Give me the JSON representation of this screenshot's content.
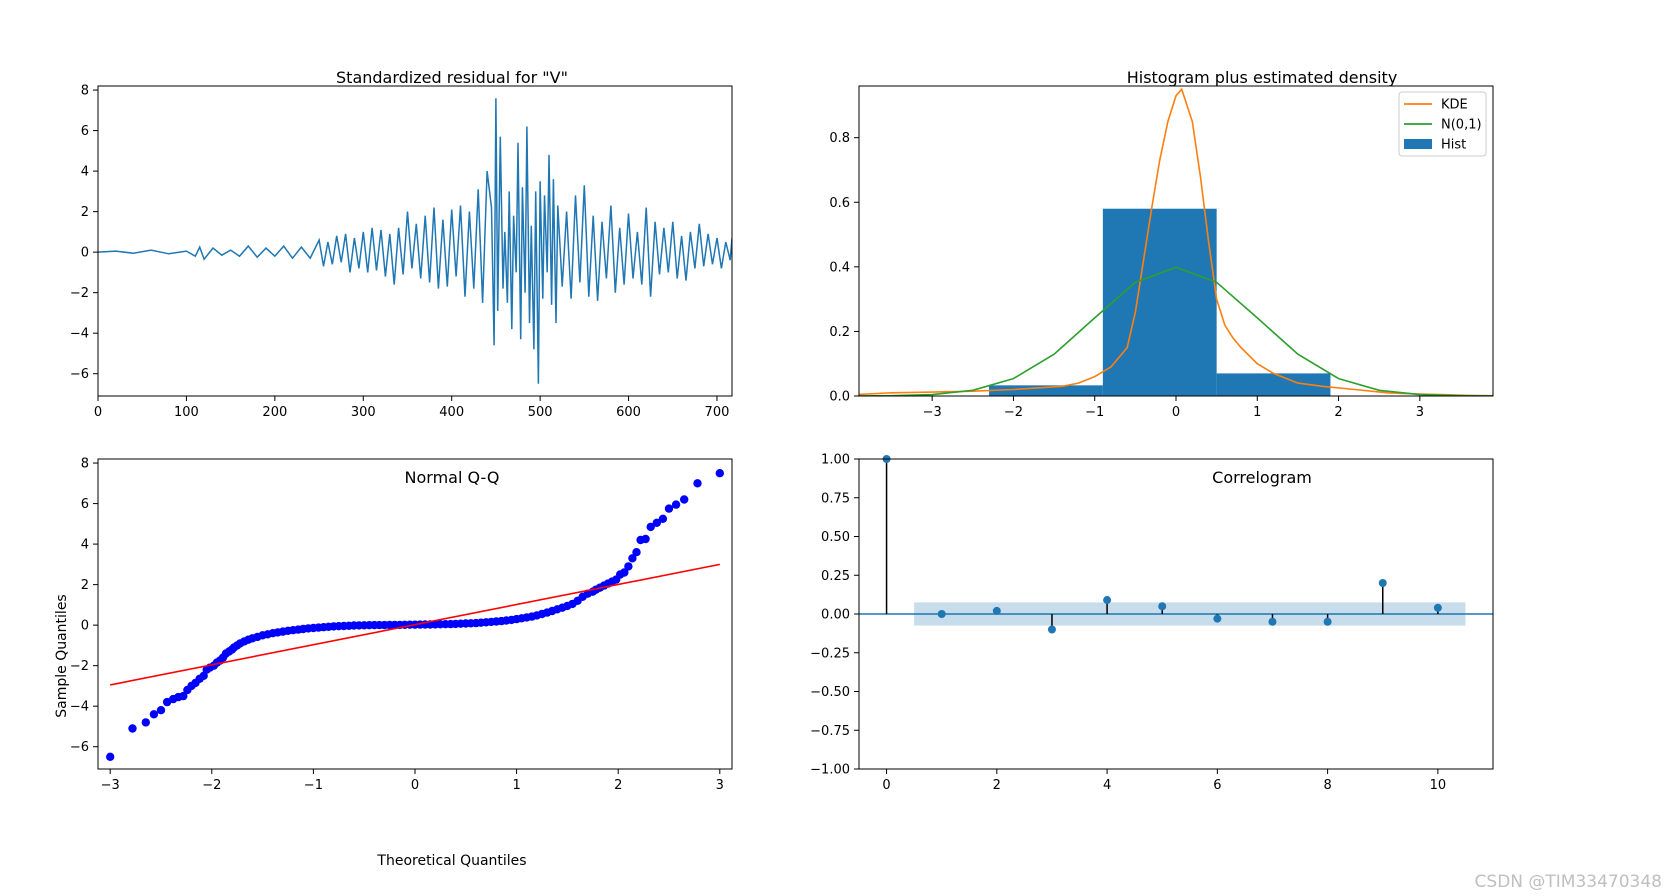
{
  "watermark": "CSDN @TIM33470348",
  "chart_data": [
    {
      "type": "line",
      "title": "Standardized residual for \"V\"",
      "xlabel": "",
      "ylabel": "",
      "xlim": [
        0,
        717
      ],
      "ylim": [
        -7.1,
        8.2
      ],
      "xticks": [
        0,
        100,
        200,
        300,
        400,
        500,
        600,
        700
      ],
      "yticks": [
        -6,
        -4,
        -2,
        0,
        2,
        4,
        6,
        8
      ],
      "color": "#1f77b4",
      "series": [
        {
          "x": [
            0,
            20,
            40,
            60,
            80,
            100,
            110,
            115,
            120,
            130,
            140,
            150,
            160,
            170,
            180,
            190,
            200,
            210,
            220,
            230,
            240,
            250,
            255,
            260,
            265,
            270,
            275,
            280,
            285,
            290,
            295,
            300,
            305,
            310,
            315,
            320,
            325,
            330,
            335,
            340,
            345,
            350,
            355,
            360,
            365,
            370,
            375,
            380,
            385,
            390,
            395,
            400,
            405,
            410,
            415,
            420,
            425,
            430,
            435,
            440,
            445,
            448,
            450,
            452,
            455,
            458,
            460,
            463,
            465,
            468,
            470,
            473,
            475,
            478,
            480,
            483,
            485,
            488,
            490,
            493,
            495,
            498,
            500,
            503,
            505,
            508,
            510,
            513,
            515,
            518,
            520,
            525,
            530,
            535,
            540,
            545,
            550,
            555,
            560,
            565,
            570,
            575,
            580,
            585,
            590,
            595,
            600,
            605,
            610,
            615,
            620,
            625,
            630,
            635,
            640,
            645,
            650,
            655,
            660,
            665,
            670,
            675,
            680,
            685,
            690,
            695,
            700,
            705,
            710,
            715,
            717
          ],
          "y": [
            0.0,
            0.05,
            -0.05,
            0.1,
            -0.08,
            0.05,
            -0.2,
            0.25,
            -0.35,
            0.2,
            -0.15,
            0.1,
            -0.2,
            0.3,
            -0.25,
            0.2,
            -0.2,
            0.3,
            -0.3,
            0.25,
            -0.3,
            0.6,
            -0.7,
            0.5,
            -0.6,
            0.8,
            -0.5,
            0.9,
            -1.0,
            0.7,
            -0.8,
            1.0,
            -1.0,
            1.2,
            -0.9,
            1.1,
            -1.2,
            0.9,
            -1.6,
            1.2,
            -1.1,
            2.0,
            -0.8,
            1.4,
            -1.3,
            1.8,
            -1.5,
            2.2,
            -1.8,
            1.6,
            -1.7,
            2.1,
            -1.2,
            2.3,
            -2.2,
            2.0,
            -1.8,
            3.1,
            -2.5,
            4.0,
            2.2,
            -4.6,
            7.6,
            -2.9,
            5.7,
            -1.8,
            1.0,
            -2.5,
            3.0,
            -3.8,
            1.8,
            -1.0,
            5.4,
            -4.3,
            3.2,
            -2.0,
            6.2,
            -3.5,
            1.3,
            -4.8,
            3.0,
            -6.5,
            3.5,
            -2.3,
            2.8,
            -1.0,
            4.8,
            -2.6,
            3.6,
            -3.5,
            2.3,
            -1.7,
            2.0,
            -2.3,
            2.8,
            -1.5,
            3.3,
            -2.2,
            1.8,
            -2.4,
            1.5,
            -1.3,
            2.3,
            -2.0,
            1.2,
            -1.6,
            1.9,
            -1.3,
            1.0,
            -1.6,
            2.2,
            -2.2,
            1.5,
            -1.1,
            1.2,
            -1.0,
            1.5,
            -1.3,
            0.8,
            -1.4,
            1.0,
            -0.8,
            1.4,
            -0.7,
            0.9,
            -0.6,
            0.7,
            -0.8,
            0.5,
            -0.4,
            0.7
          ]
        }
      ]
    },
    {
      "type": "histogram",
      "title": "Histogram plus estimated density",
      "xlabel": "",
      "ylabel": "",
      "xlim": [
        -3.9,
        3.9
      ],
      "ylim": [
        0,
        0.96
      ],
      "xticks": [
        -3,
        -2,
        -1,
        0,
        1,
        2,
        3
      ],
      "yticks": [
        0.0,
        0.2,
        0.4,
        0.6,
        0.8
      ],
      "legend": {
        "position": "top-right",
        "entries": [
          "KDE",
          "N(0,1)",
          "Hist"
        ]
      },
      "bins": [
        {
          "x0": -2.3,
          "x1": -0.9,
          "value": 0.033
        },
        {
          "x0": -0.9,
          "x1": 0.5,
          "value": 0.58
        },
        {
          "x0": 0.5,
          "x1": 1.9,
          "value": 0.07
        }
      ],
      "series": [
        {
          "name": "KDE",
          "color": "#ff7f0e",
          "x": [
            -3.9,
            -3.5,
            -3.0,
            -2.5,
            -2.0,
            -1.7,
            -1.4,
            -1.2,
            -1.0,
            -0.8,
            -0.6,
            -0.5,
            -0.4,
            -0.3,
            -0.2,
            -0.1,
            0.0,
            0.07,
            0.2,
            0.3,
            0.4,
            0.5,
            0.6,
            0.7,
            0.8,
            1.0,
            1.2,
            1.5,
            1.8,
            2.2,
            2.6,
            3.0,
            3.3,
            3.6,
            3.9
          ],
          "y": [
            0.005,
            0.01,
            0.012,
            0.015,
            0.02,
            0.025,
            0.03,
            0.04,
            0.06,
            0.09,
            0.15,
            0.26,
            0.42,
            0.58,
            0.73,
            0.85,
            0.93,
            0.95,
            0.85,
            0.68,
            0.48,
            0.3,
            0.22,
            0.18,
            0.15,
            0.1,
            0.07,
            0.04,
            0.03,
            0.02,
            0.01,
            0.006,
            0.004,
            0.002,
            0.001
          ]
        },
        {
          "name": "N(0,1)",
          "color": "#2ca02c",
          "x": [
            -3.9,
            -3.5,
            -3.0,
            -2.5,
            -2.0,
            -1.5,
            -1.0,
            -0.5,
            0.0,
            0.5,
            1.0,
            1.5,
            2.0,
            2.5,
            3.0,
            3.5,
            3.9
          ],
          "y": [
            0.0002,
            0.0009,
            0.0044,
            0.0175,
            0.054,
            0.1295,
            0.242,
            0.352,
            0.399,
            0.352,
            0.242,
            0.1295,
            0.054,
            0.0175,
            0.0044,
            0.0009,
            0.0002
          ]
        }
      ]
    },
    {
      "type": "scatter",
      "title": "Normal Q-Q",
      "xlabel": "Theoretical Quantiles",
      "ylabel": "Sample Quantiles",
      "xlim": [
        -3.12,
        3.12
      ],
      "ylim": [
        -7.1,
        8.2
      ],
      "xticks": [
        -3,
        -2,
        -1,
        0,
        1,
        2,
        3
      ],
      "yticks": [
        -6,
        -4,
        -2,
        0,
        2,
        4,
        6,
        8
      ],
      "points_color": "#0000ff",
      "points": {
        "x": [
          -3.0,
          -2.78,
          -2.65,
          -2.57,
          -2.5,
          -2.44,
          -2.38,
          -2.33,
          -2.28,
          -2.24,
          -2.2,
          -2.16,
          -2.12,
          -2.08,
          -2.05,
          -2.02,
          -1.98,
          -1.95,
          -1.92,
          -1.89,
          -1.86,
          -1.83,
          -1.8,
          -1.78,
          -1.75,
          -1.72,
          -1.68,
          -1.64,
          -1.6,
          -1.55,
          -1.5,
          -1.45,
          -1.4,
          -1.35,
          -1.3,
          -1.25,
          -1.2,
          -1.15,
          -1.1,
          -1.05,
          -1.0,
          -0.95,
          -0.9,
          -0.85,
          -0.8,
          -0.75,
          -0.7,
          -0.65,
          -0.6,
          -0.55,
          -0.5,
          -0.45,
          -0.4,
          -0.35,
          -0.3,
          -0.25,
          -0.2,
          -0.15,
          -0.1,
          -0.05,
          0.0,
          0.05,
          0.1,
          0.15,
          0.2,
          0.25,
          0.3,
          0.35,
          0.4,
          0.45,
          0.5,
          0.55,
          0.6,
          0.65,
          0.7,
          0.75,
          0.8,
          0.85,
          0.9,
          0.95,
          1.0,
          1.05,
          1.1,
          1.15,
          1.2,
          1.25,
          1.3,
          1.35,
          1.4,
          1.45,
          1.5,
          1.55,
          1.6,
          1.65,
          1.7,
          1.75,
          1.78,
          1.82,
          1.86,
          1.9,
          1.94,
          1.98,
          2.02,
          2.06,
          2.1,
          2.14,
          2.18,
          2.22,
          2.27,
          2.32,
          2.38,
          2.44,
          2.5,
          2.57,
          2.65,
          2.78,
          3.0
        ],
        "y": [
          -6.5,
          -5.1,
          -4.8,
          -4.4,
          -4.2,
          -3.8,
          -3.65,
          -3.55,
          -3.5,
          -3.2,
          -3.0,
          -2.85,
          -2.65,
          -2.5,
          -2.2,
          -2.1,
          -2.0,
          -1.85,
          -1.75,
          -1.6,
          -1.4,
          -1.3,
          -1.2,
          -1.1,
          -1.0,
          -0.9,
          -0.8,
          -0.72,
          -0.65,
          -0.58,
          -0.5,
          -0.45,
          -0.4,
          -0.36,
          -0.32,
          -0.28,
          -0.25,
          -0.22,
          -0.19,
          -0.16,
          -0.14,
          -0.12,
          -0.1,
          -0.08,
          -0.06,
          -0.05,
          -0.04,
          -0.03,
          -0.02,
          -0.015,
          -0.01,
          -0.005,
          0.0,
          0.0,
          0.0,
          0.005,
          0.01,
          0.01,
          0.015,
          0.02,
          0.02,
          0.025,
          0.03,
          0.03,
          0.035,
          0.04,
          0.045,
          0.05,
          0.06,
          0.07,
          0.08,
          0.09,
          0.1,
          0.12,
          0.14,
          0.16,
          0.18,
          0.2,
          0.23,
          0.26,
          0.3,
          0.34,
          0.38,
          0.42,
          0.48,
          0.55,
          0.62,
          0.7,
          0.78,
          0.86,
          0.95,
          1.05,
          1.2,
          1.4,
          1.55,
          1.65,
          1.75,
          1.85,
          1.95,
          2.05,
          2.15,
          2.25,
          2.5,
          2.6,
          2.9,
          3.3,
          3.6,
          4.2,
          4.25,
          4.85,
          5.05,
          5.25,
          5.75,
          5.95,
          6.2,
          7.0,
          7.5
        ]
      },
      "reference_line": {
        "color": "#ff0000",
        "x": [
          -3.0,
          3.0
        ],
        "y": [
          -2.95,
          3.0
        ]
      }
    },
    {
      "type": "stem",
      "title": "Correlogram",
      "xlabel": "",
      "ylabel": "",
      "xlim": [
        -0.5,
        11.0
      ],
      "ylim": [
        -1.0,
        1.0
      ],
      "xticks": [
        0,
        2,
        4,
        6,
        8,
        10
      ],
      "yticks": [
        -1.0,
        -0.75,
        -0.5,
        -0.25,
        0.0,
        0.25,
        0.5,
        0.75,
        1.0
      ],
      "ytick_labels": [
        "−1.00",
        "−0.75",
        "−0.50",
        "−0.25",
        "0.00",
        "0.25",
        "0.50",
        "0.75",
        "1.00"
      ],
      "lags": [
        0,
        1,
        2,
        3,
        4,
        5,
        6,
        7,
        8,
        9,
        10
      ],
      "values": [
        1.0,
        0.0,
        0.02,
        -0.1,
        0.09,
        0.05,
        -0.03,
        -0.05,
        -0.05,
        0.2,
        0.04
      ],
      "confidence_band": {
        "x0": 0.5,
        "x1": 10.5,
        "lower": -0.075,
        "upper": 0.075,
        "color": "#1f77b4"
      },
      "color": "#1f77b4"
    }
  ]
}
